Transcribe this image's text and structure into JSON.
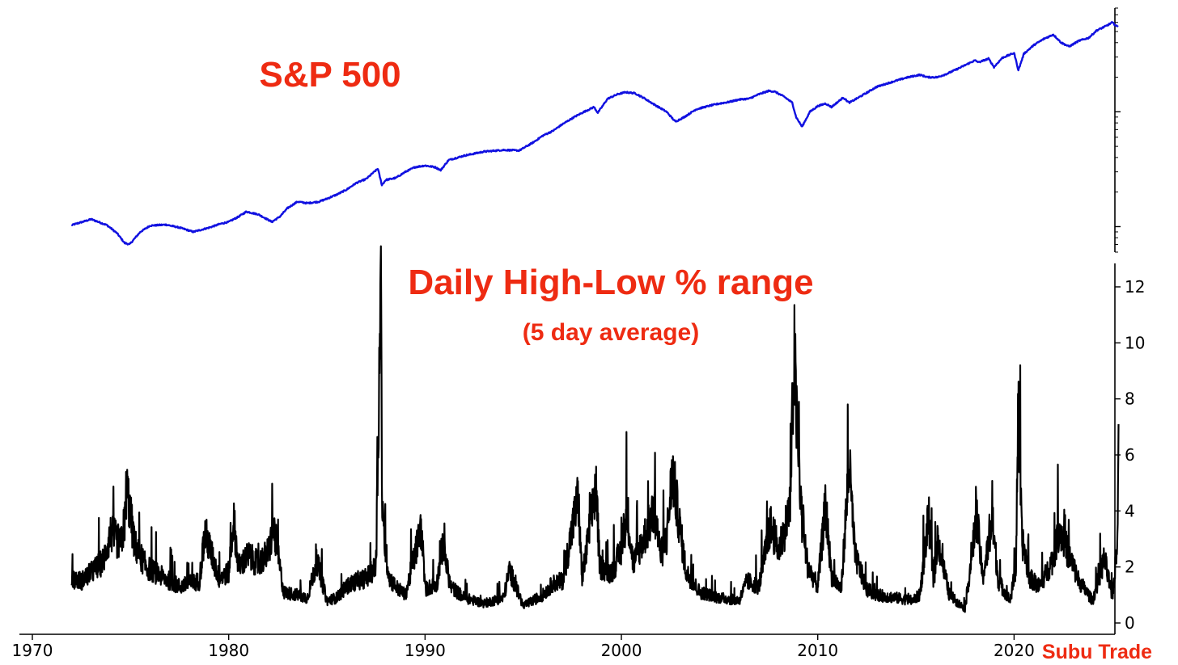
{
  "chart_data": [
    {
      "type": "line",
      "title": "S&P 500",
      "yscale": "log",
      "ytick_labels": false,
      "grid": false,
      "line_color": "#1010e0",
      "xlim": [
        1970,
        2026
      ],
      "series": [
        {
          "x": [
            1972.0,
            1973.0,
            1973.8,
            1974.3,
            1974.7,
            1974.95,
            1975.5,
            1976.0,
            1976.8,
            1977.5,
            1978.2,
            1979.0,
            1979.6,
            1980.0,
            1980.5,
            1980.9,
            1981.5,
            1982.2,
            1982.6,
            1983.0,
            1983.5,
            1984.0,
            1984.6,
            1985.0,
            1985.5,
            1986.0,
            1986.5,
            1987.0,
            1987.6,
            1987.8,
            1988.0,
            1988.5,
            1989.0,
            1989.5,
            1990.0,
            1990.5,
            1990.8,
            1991.2,
            1992.0,
            1993.0,
            1994.0,
            1994.8,
            1995.5,
            1996.0,
            1996.5,
            1997.0,
            1997.6,
            1998.0,
            1998.6,
            1998.8,
            1999.3,
            1999.8,
            2000.2,
            2000.7,
            2001.2,
            2001.7,
            2002.3,
            2002.75,
            2003.2,
            2003.8,
            2004.5,
            2005.0,
            2005.5,
            2006.0,
            2006.5,
            2007.0,
            2007.5,
            2007.8,
            2008.3,
            2008.7,
            2008.9,
            2009.2,
            2009.6,
            2010.0,
            2010.4,
            2010.7,
            2011.3,
            2011.6,
            2011.8,
            2012.3,
            2013.0,
            2013.7,
            2014.5,
            2015.2,
            2015.6,
            2016.1,
            2016.6,
            2017.2,
            2018.0,
            2018.2,
            2018.7,
            2018.98,
            2019.4,
            2019.9,
            2020.0,
            2020.22,
            2020.5,
            2021.0,
            2021.5,
            2022.0,
            2022.4,
            2022.8,
            2023.3,
            2023.8,
            2024.2,
            2024.7,
            2025.0,
            2025.2,
            2025.3
          ],
          "y": [
            103,
            116,
            103,
            88,
            72,
            70,
            90,
            102,
            104,
            98,
            90,
            98,
            106,
            110,
            122,
            135,
            128,
            110,
            122,
            145,
            165,
            160,
            165,
            175,
            190,
            210,
            240,
            260,
            320,
            230,
            255,
            265,
            300,
            330,
            340,
            330,
            310,
            380,
            415,
            450,
            465,
            460,
            540,
            620,
            680,
            780,
            900,
            980,
            1100,
            980,
            1300,
            1420,
            1480,
            1450,
            1300,
            1150,
            1000,
            820,
            900,
            1050,
            1130,
            1180,
            1220,
            1280,
            1300,
            1420,
            1520,
            1500,
            1350,
            1200,
            900,
            740,
            1000,
            1120,
            1180,
            1100,
            1330,
            1200,
            1250,
            1400,
            1650,
            1800,
            1980,
            2100,
            2000,
            2000,
            2150,
            2400,
            2800,
            2700,
            2900,
            2450,
            2950,
            3200,
            3250,
            2300,
            3200,
            3800,
            4300,
            4700,
            4000,
            3700,
            4150,
            4400,
            5100,
            5600,
            6000,
            5600,
            5500
          ]
        }
      ]
    },
    {
      "type": "line",
      "title": "Daily High-Low % range",
      "subtitle": "(5 day average)",
      "line_color": "#000000",
      "grid": false,
      "xlim": [
        1970,
        2026
      ],
      "ylim": [
        0,
        12.8
      ],
      "xticks": [
        "1970",
        "1980",
        "1990",
        "2000",
        "2010",
        "2020"
      ],
      "yticks": [
        "0",
        "2",
        "4",
        "6",
        "8",
        "10",
        "12"
      ],
      "series": [
        {
          "x": [
            1972.0,
            1972.5,
            1973.0,
            1973.6,
            1974.0,
            1974.5,
            1974.7,
            1974.8,
            1975.2,
            1975.8,
            1976.5,
            1977.5,
            1978.5,
            1978.8,
            1979.5,
            1980.0,
            1980.25,
            1980.5,
            1981.0,
            1981.5,
            1982.0,
            1982.3,
            1982.6,
            1982.8,
            1983.5,
            1984.0,
            1984.5,
            1985.0,
            1985.5,
            1986.0,
            1986.5,
            1987.0,
            1987.5,
            1987.75,
            1987.8,
            1987.85,
            1988.0,
            1988.2,
            1988.5,
            1989.0,
            1989.8,
            1990.0,
            1990.6,
            1990.9,
            1991.3,
            1992.0,
            1993.0,
            1994.0,
            1994.3,
            1995.0,
            1996.0,
            1996.5,
            1997.0,
            1997.8,
            1998.0,
            1998.7,
            1998.9,
            1999.5,
            2000.0,
            2000.3,
            2000.6,
            2001.0,
            2001.3,
            2001.7,
            2002.0,
            2002.3,
            2002.6,
            2002.9,
            2003.3,
            2004.0,
            2005.0,
            2006.0,
            2006.4,
            2007.0,
            2007.6,
            2008.0,
            2008.3,
            2008.6,
            2008.8,
            2008.9,
            2009.2,
            2009.5,
            2010.0,
            2010.4,
            2010.7,
            2011.2,
            2011.6,
            2011.9,
            2012.5,
            2013.0,
            2014.0,
            2014.8,
            2015.2,
            2015.65,
            2015.9,
            2016.1,
            2016.7,
            2017.5,
            2018.1,
            2018.4,
            2018.9,
            2019.2,
            2019.8,
            2020.1,
            2020.2,
            2020.4,
            2020.8,
            2021.3,
            2022.0,
            2022.3,
            2022.7,
            2023.3,
            2024.0,
            2024.6,
            2025.0,
            2025.25,
            2025.32
          ],
          "y": [
            1.6,
            1.5,
            1.8,
            2.2,
            3.2,
            2.8,
            3.6,
            4.9,
            2.8,
            2.0,
            1.7,
            1.3,
            1.5,
            3.2,
            1.6,
            1.8,
            3.7,
            2.0,
            2.4,
            2.1,
            2.5,
            3.4,
            2.0,
            1.1,
            1.0,
            0.9,
            2.2,
            0.8,
            0.9,
            1.3,
            1.5,
            1.6,
            2.0,
            12.2,
            5.0,
            3.6,
            2.5,
            1.6,
            1.3,
            1.0,
            3.4,
            1.2,
            1.4,
            2.8,
            1.3,
            0.9,
            0.7,
            0.9,
            1.9,
            0.6,
            1.0,
            1.4,
            1.5,
            4.5,
            1.5,
            4.9,
            2.0,
            1.8,
            2.6,
            4.0,
            2.1,
            2.8,
            3.3,
            4.0,
            2.4,
            3.0,
            5.4,
            3.8,
            1.8,
            1.1,
            0.9,
            0.8,
            1.5,
            1.3,
            3.5,
            2.6,
            3.3,
            4.2,
            9.9,
            7.5,
            3.6,
            2.0,
            1.3,
            4.2,
            1.7,
            1.2,
            5.7,
            2.4,
            1.2,
            1.0,
            0.9,
            0.8,
            1.0,
            3.8,
            1.4,
            3.0,
            1.0,
            0.5,
            3.8,
            1.6,
            3.6,
            1.5,
            0.8,
            2.0,
            7.8,
            3.0,
            1.6,
            1.3,
            2.3,
            3.4,
            2.6,
            1.5,
            0.8,
            2.3,
            0.9,
            2.6,
            7.1
          ]
        }
      ]
    }
  ],
  "watermark": "Subu Trade"
}
